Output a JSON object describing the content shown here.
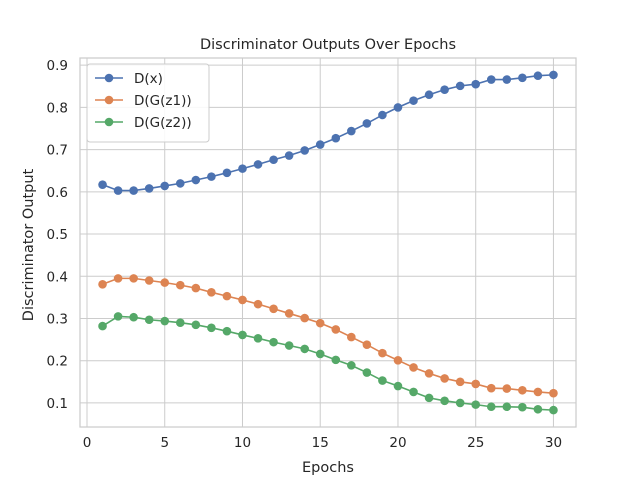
{
  "chart_data": {
    "type": "line",
    "title": "Discriminator Outputs Over Epochs",
    "xlabel": "Epochs",
    "ylabel": "Discriminator Output",
    "xlim": [
      -0.45,
      31.45
    ],
    "ylim": [
      0.043,
      0.917
    ],
    "xticks": [
      0,
      5,
      10,
      15,
      20,
      25,
      30
    ],
    "yticks": [
      0.1,
      0.2,
      0.3,
      0.4,
      0.5,
      0.6,
      0.7,
      0.8,
      0.9
    ],
    "grid": true,
    "legend_position": "top-left",
    "x": [
      1,
      2,
      3,
      4,
      5,
      6,
      7,
      8,
      9,
      10,
      11,
      12,
      13,
      14,
      15,
      16,
      17,
      18,
      19,
      20,
      21,
      22,
      23,
      24,
      25,
      26,
      27,
      28,
      29,
      30
    ],
    "series": [
      {
        "name": "D(x)",
        "color": "#4c72b0",
        "values": [
          0.617,
          0.603,
          0.603,
          0.608,
          0.614,
          0.62,
          0.628,
          0.636,
          0.645,
          0.655,
          0.665,
          0.676,
          0.686,
          0.698,
          0.712,
          0.727,
          0.744,
          0.762,
          0.782,
          0.8,
          0.816,
          0.83,
          0.842,
          0.851,
          0.855,
          0.866,
          0.866,
          0.87,
          0.875,
          0.877
        ]
      },
      {
        "name": "D(G(z1))",
        "color": "#dd8452",
        "values": [
          0.381,
          0.395,
          0.395,
          0.39,
          0.385,
          0.379,
          0.372,
          0.362,
          0.353,
          0.344,
          0.334,
          0.323,
          0.312,
          0.301,
          0.289,
          0.274,
          0.256,
          0.238,
          0.218,
          0.201,
          0.184,
          0.17,
          0.158,
          0.15,
          0.145,
          0.135,
          0.134,
          0.13,
          0.126,
          0.123
        ]
      },
      {
        "name": "D(G(z2))",
        "color": "#55a868",
        "values": [
          0.282,
          0.305,
          0.303,
          0.297,
          0.294,
          0.29,
          0.285,
          0.278,
          0.27,
          0.261,
          0.253,
          0.244,
          0.236,
          0.228,
          0.216,
          0.202,
          0.189,
          0.172,
          0.153,
          0.14,
          0.126,
          0.112,
          0.105,
          0.1,
          0.096,
          0.091,
          0.091,
          0.09,
          0.085,
          0.083
        ]
      }
    ]
  }
}
